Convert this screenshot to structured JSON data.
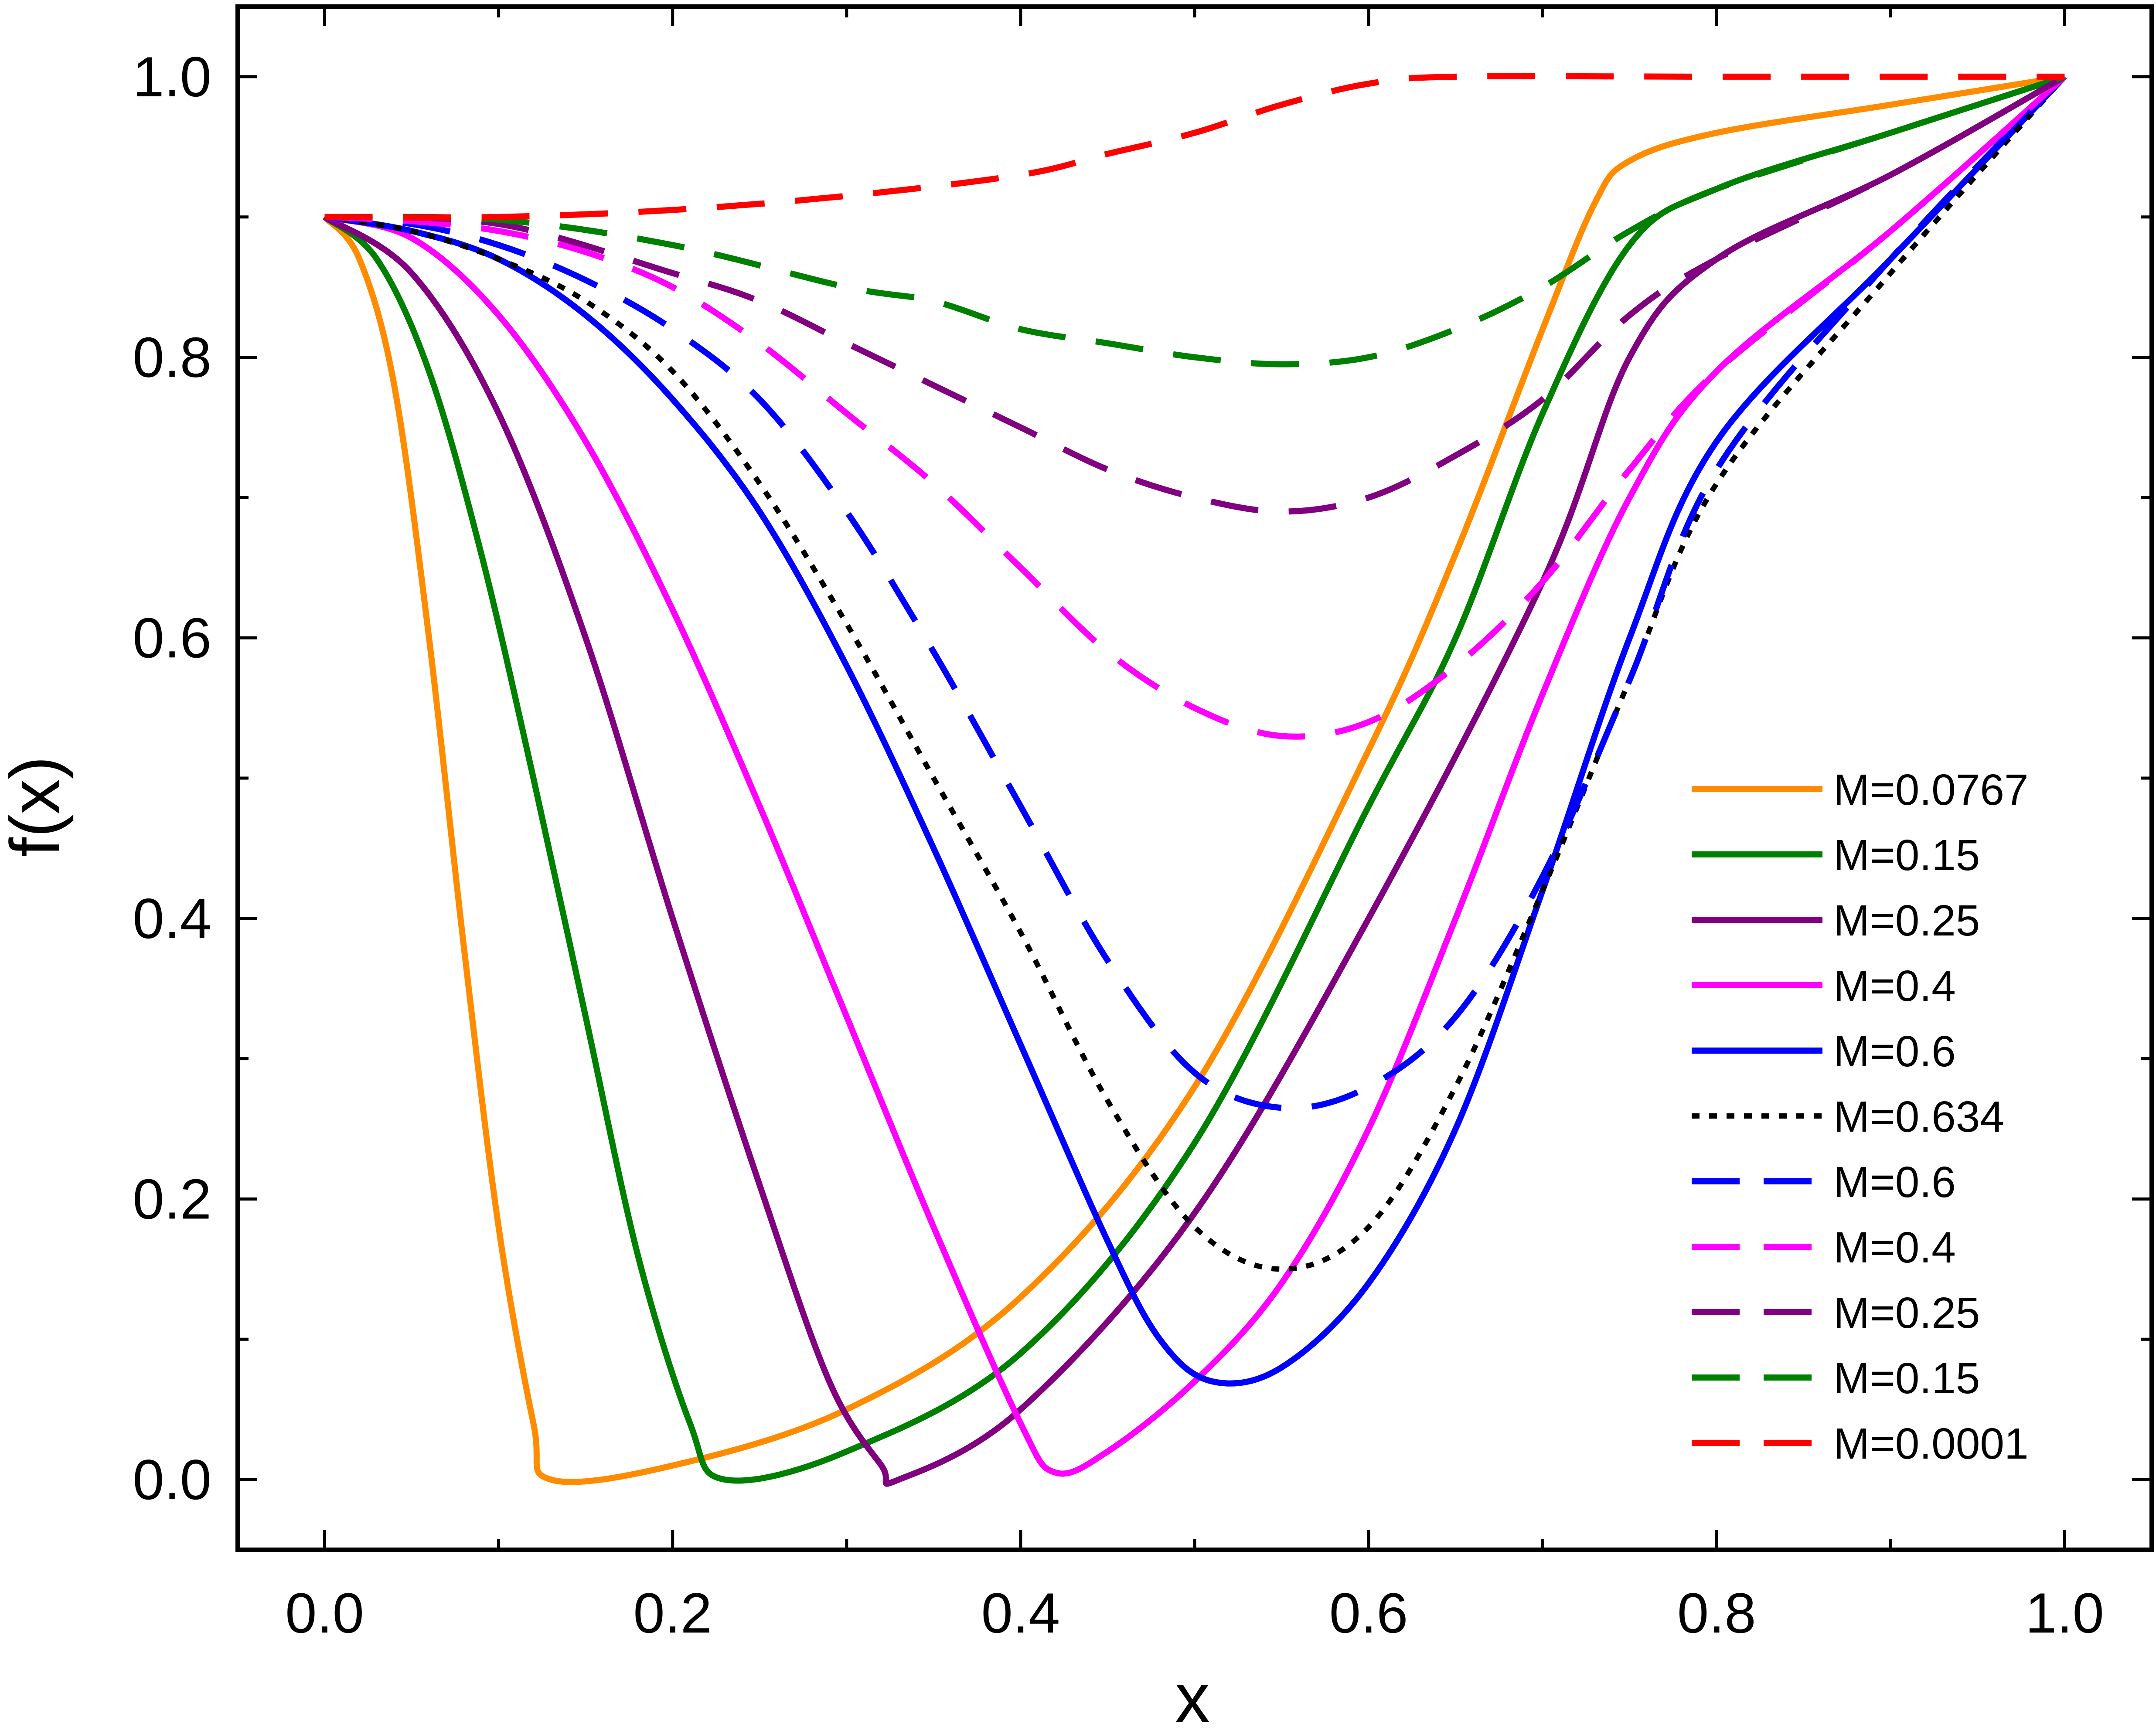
{
  "chart_data": {
    "type": "line",
    "title": "",
    "xlabel": "x",
    "ylabel": "f(x)",
    "xlim": [
      -0.05,
      1.05
    ],
    "ylim": [
      -0.05,
      1.05
    ],
    "xticks": [
      0.0,
      0.2,
      0.4,
      0.6,
      0.8,
      1.0
    ],
    "xtick_labels": [
      "0.0",
      "0.2",
      "0.4",
      "0.6",
      "0.8",
      "1.0"
    ],
    "yticks": [
      0.0,
      0.2,
      0.4,
      0.6,
      0.8,
      1.0
    ],
    "ytick_labels": [
      "0.0",
      "0.2",
      "0.4",
      "0.6",
      "0.8",
      "1.0"
    ],
    "grid": false,
    "legend_position": "right, lower half",
    "series": [
      {
        "name": "M=0.0767",
        "color": "#ff8c00",
        "style": "solid",
        "points": [
          [
            0,
            0.9
          ],
          [
            0.02,
            0.87
          ],
          [
            0.04,
            0.78
          ],
          [
            0.06,
            0.6
          ],
          [
            0.08,
            0.38
          ],
          [
            0.1,
            0.18
          ],
          [
            0.12,
            0.04
          ],
          [
            0.13,
            0.0
          ],
          [
            0.2,
            0.01
          ],
          [
            0.3,
            0.05
          ],
          [
            0.4,
            0.13
          ],
          [
            0.5,
            0.28
          ],
          [
            0.6,
            0.52
          ],
          [
            0.65,
            0.66
          ],
          [
            0.7,
            0.82
          ],
          [
            0.73,
            0.91
          ],
          [
            0.75,
            0.94
          ],
          [
            0.8,
            0.96
          ],
          [
            0.9,
            0.98
          ],
          [
            1.0,
            1.0
          ]
        ]
      },
      {
        "name": "M=0.15",
        "color": "#008000",
        "style": "solid",
        "points": [
          [
            0,
            0.9
          ],
          [
            0.03,
            0.87
          ],
          [
            0.06,
            0.79
          ],
          [
            0.09,
            0.66
          ],
          [
            0.12,
            0.5
          ],
          [
            0.15,
            0.33
          ],
          [
            0.18,
            0.16
          ],
          [
            0.21,
            0.04
          ],
          [
            0.23,
            0.0
          ],
          [
            0.3,
            0.02
          ],
          [
            0.4,
            0.09
          ],
          [
            0.5,
            0.24
          ],
          [
            0.6,
            0.48
          ],
          [
            0.65,
            0.6
          ],
          [
            0.7,
            0.76
          ],
          [
            0.75,
            0.88
          ],
          [
            0.8,
            0.92
          ],
          [
            0.9,
            0.96
          ],
          [
            1.0,
            1.0
          ]
        ]
      },
      {
        "name": "M=0.25",
        "color": "#800080",
        "style": "solid",
        "points": [
          [
            0,
            0.9
          ],
          [
            0.05,
            0.86
          ],
          [
            0.1,
            0.76
          ],
          [
            0.15,
            0.6
          ],
          [
            0.2,
            0.4
          ],
          [
            0.25,
            0.21
          ],
          [
            0.29,
            0.07
          ],
          [
            0.32,
            0.01
          ],
          [
            0.33,
            0.0
          ],
          [
            0.4,
            0.05
          ],
          [
            0.5,
            0.19
          ],
          [
            0.6,
            0.4
          ],
          [
            0.7,
            0.64
          ],
          [
            0.75,
            0.8
          ],
          [
            0.8,
            0.87
          ],
          [
            0.9,
            0.93
          ],
          [
            1.0,
            1.0
          ]
        ]
      },
      {
        "name": "M=0.4",
        "color": "#ff00ff",
        "style": "solid",
        "points": [
          [
            0,
            0.9
          ],
          [
            0.05,
            0.885
          ],
          [
            0.1,
            0.83
          ],
          [
            0.15,
            0.74
          ],
          [
            0.2,
            0.62
          ],
          [
            0.25,
            0.48
          ],
          [
            0.3,
            0.33
          ],
          [
            0.35,
            0.18
          ],
          [
            0.4,
            0.04
          ],
          [
            0.42,
            0.005
          ],
          [
            0.45,
            0.02
          ],
          [
            0.5,
            0.07
          ],
          [
            0.55,
            0.14
          ],
          [
            0.6,
            0.25
          ],
          [
            0.65,
            0.4
          ],
          [
            0.7,
            0.56
          ],
          [
            0.75,
            0.7
          ],
          [
            0.8,
            0.79
          ],
          [
            0.9,
            0.89
          ],
          [
            1.0,
            1.0
          ]
        ]
      },
      {
        "name": "M=0.6",
        "color": "#0000ff",
        "style": "solid",
        "points": [
          [
            0,
            0.9
          ],
          [
            0.05,
            0.89
          ],
          [
            0.1,
            0.87
          ],
          [
            0.15,
            0.83
          ],
          [
            0.2,
            0.77
          ],
          [
            0.25,
            0.69
          ],
          [
            0.3,
            0.58
          ],
          [
            0.35,
            0.45
          ],
          [
            0.4,
            0.31
          ],
          [
            0.45,
            0.17
          ],
          [
            0.48,
            0.1
          ],
          [
            0.51,
            0.07
          ],
          [
            0.55,
            0.08
          ],
          [
            0.6,
            0.14
          ],
          [
            0.65,
            0.25
          ],
          [
            0.7,
            0.42
          ],
          [
            0.75,
            0.6
          ],
          [
            0.8,
            0.74
          ],
          [
            0.9,
            0.87
          ],
          [
            1.0,
            1.0
          ]
        ]
      },
      {
        "name": "M=0.634",
        "color": "#000000",
        "style": "dotted",
        "points": [
          [
            0,
            0.9
          ],
          [
            0.05,
            0.89
          ],
          [
            0.1,
            0.87
          ],
          [
            0.15,
            0.84
          ],
          [
            0.2,
            0.79
          ],
          [
            0.25,
            0.71
          ],
          [
            0.3,
            0.61
          ],
          [
            0.35,
            0.5
          ],
          [
            0.4,
            0.39
          ],
          [
            0.45,
            0.27
          ],
          [
            0.5,
            0.18
          ],
          [
            0.55,
            0.15
          ],
          [
            0.6,
            0.18
          ],
          [
            0.65,
            0.28
          ],
          [
            0.7,
            0.42
          ],
          [
            0.75,
            0.57
          ],
          [
            0.8,
            0.71
          ],
          [
            0.9,
            0.86
          ],
          [
            1.0,
            1.0
          ]
        ]
      },
      {
        "name": "M=0.6",
        "color": "#0000ff",
        "style": "dashed",
        "points": [
          [
            0,
            0.9
          ],
          [
            0.05,
            0.895
          ],
          [
            0.1,
            0.88
          ],
          [
            0.15,
            0.855
          ],
          [
            0.2,
            0.82
          ],
          [
            0.25,
            0.77
          ],
          [
            0.3,
            0.69
          ],
          [
            0.35,
            0.59
          ],
          [
            0.4,
            0.48
          ],
          [
            0.45,
            0.37
          ],
          [
            0.5,
            0.29
          ],
          [
            0.55,
            0.265
          ],
          [
            0.6,
            0.28
          ],
          [
            0.65,
            0.33
          ],
          [
            0.7,
            0.43
          ],
          [
            0.75,
            0.57
          ],
          [
            0.8,
            0.72
          ],
          [
            0.9,
            0.87
          ],
          [
            1.0,
            1.0
          ]
        ]
      },
      {
        "name": "M=0.4",
        "color": "#ff00ff",
        "style": "dashed",
        "points": [
          [
            0,
            0.9
          ],
          [
            0.05,
            0.897
          ],
          [
            0.1,
            0.89
          ],
          [
            0.15,
            0.875
          ],
          [
            0.2,
            0.85
          ],
          [
            0.25,
            0.81
          ],
          [
            0.3,
            0.76
          ],
          [
            0.35,
            0.71
          ],
          [
            0.4,
            0.65
          ],
          [
            0.45,
            0.59
          ],
          [
            0.5,
            0.55
          ],
          [
            0.55,
            0.53
          ],
          [
            0.6,
            0.54
          ],
          [
            0.65,
            0.58
          ],
          [
            0.7,
            0.64
          ],
          [
            0.75,
            0.72
          ],
          [
            0.8,
            0.79
          ],
          [
            0.9,
            0.89
          ],
          [
            1.0,
            1.0
          ]
        ]
      },
      {
        "name": "M=0.25",
        "color": "#800080",
        "style": "dashed",
        "points": [
          [
            0,
            0.9
          ],
          [
            0.1,
            0.895
          ],
          [
            0.2,
            0.86
          ],
          [
            0.25,
            0.84
          ],
          [
            0.3,
            0.81
          ],
          [
            0.35,
            0.78
          ],
          [
            0.4,
            0.75
          ],
          [
            0.45,
            0.72
          ],
          [
            0.5,
            0.7
          ],
          [
            0.55,
            0.69
          ],
          [
            0.6,
            0.7
          ],
          [
            0.65,
            0.73
          ],
          [
            0.7,
            0.77
          ],
          [
            0.75,
            0.83
          ],
          [
            0.8,
            0.87
          ],
          [
            0.9,
            0.93
          ],
          [
            1.0,
            1.0
          ]
        ]
      },
      {
        "name": "M=0.15",
        "color": "#008000",
        "style": "dashed",
        "points": [
          [
            0,
            0.9
          ],
          [
            0.1,
            0.898
          ],
          [
            0.2,
            0.88
          ],
          [
            0.3,
            0.85
          ],
          [
            0.35,
            0.84
          ],
          [
            0.4,
            0.82
          ],
          [
            0.45,
            0.81
          ],
          [
            0.5,
            0.8
          ],
          [
            0.55,
            0.795
          ],
          [
            0.6,
            0.8
          ],
          [
            0.65,
            0.82
          ],
          [
            0.7,
            0.85
          ],
          [
            0.75,
            0.89
          ],
          [
            0.8,
            0.92
          ],
          [
            0.9,
            0.96
          ],
          [
            1.0,
            1.0
          ]
        ]
      },
      {
        "name": "M=0.0001",
        "color": "#ff0000",
        "style": "dashed",
        "points": [
          [
            0,
            0.9
          ],
          [
            0.1,
            0.9
          ],
          [
            0.2,
            0.905
          ],
          [
            0.3,
            0.915
          ],
          [
            0.4,
            0.93
          ],
          [
            0.45,
            0.945
          ],
          [
            0.5,
            0.96
          ],
          [
            0.55,
            0.98
          ],
          [
            0.6,
            0.995
          ],
          [
            0.65,
            1.0
          ],
          [
            0.8,
            1.0
          ],
          [
            1.0,
            1.0
          ]
        ]
      }
    ]
  }
}
